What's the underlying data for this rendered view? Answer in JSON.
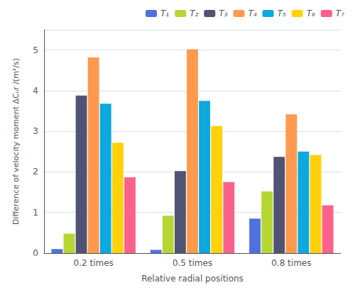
{
  "chart_data": {
    "type": "bar",
    "categories": [
      "0.2 times",
      "0.5 times",
      "0.8 times"
    ],
    "series": [
      {
        "name": "T₁",
        "values": [
          0.1,
          0.08,
          0.85
        ]
      },
      {
        "name": "T₂",
        "values": [
          0.48,
          0.92,
          1.52
        ]
      },
      {
        "name": "T₃",
        "values": [
          3.88,
          2.02,
          2.37
        ]
      },
      {
        "name": "T₄",
        "values": [
          4.82,
          5.02,
          3.42
        ]
      },
      {
        "name": "T₅",
        "values": [
          3.68,
          3.75,
          2.5
        ]
      },
      {
        "name": "T₆",
        "values": [
          2.72,
          3.13,
          2.42
        ]
      },
      {
        "name": "T₇",
        "values": [
          1.87,
          1.75,
          1.18
        ]
      }
    ],
    "xlabel": "Relative radial positions",
    "ylabel": "Difference of velocity moment ΔCᵤr /(m²/s)",
    "ylim": [
      0,
      5.5
    ],
    "yticks": [
      0,
      1,
      2,
      3,
      4,
      5
    ],
    "grid": true,
    "legend": "upper right"
  }
}
